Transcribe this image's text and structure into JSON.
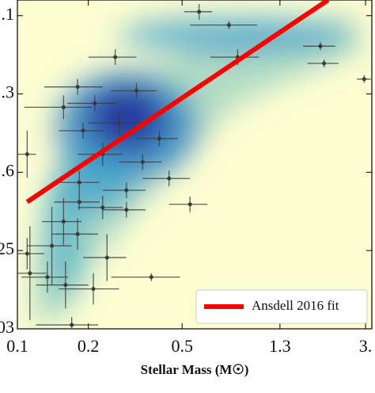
{
  "chart_data": {
    "type": "scatter",
    "xlabel": "Stellar Mass (M☉)",
    "xscale": "log",
    "xlim": [
      0.1,
      3.19
    ],
    "xticks": [
      0.1,
      0.2,
      0.5,
      1.3,
      {
        "value": 3,
        "label": "3."
      }
    ],
    "ylim": [
      0,
      4.2
    ],
    "yticks": [
      {
        "value": 4,
        "label": ".1"
      },
      {
        "value": 3,
        "label": ".3"
      },
      {
        "value": 2,
        "label": ".6"
      },
      {
        "value": 1,
        "label": "25"
      },
      {
        "value": 0,
        "label": "03"
      }
    ],
    "legend": "lower right",
    "series": [
      {
        "name": "Ansdell 2016 fit",
        "color": "#ff0000",
        "x": [
          0.11,
          2.08
        ],
        "values": [
          1.62,
          4.2
        ]
      }
    ],
    "points": {
      "color": "#3a3a3a",
      "x": [
        0.59,
        0.79,
        0.26,
        0.86,
        1.93,
        2.0,
        2.96,
        0.18,
        0.32,
        0.157,
        0.213,
        0.27,
        0.19,
        0.4,
        0.11,
        0.23,
        0.34,
        0.44,
        0.183,
        0.29,
        0.183,
        0.23,
        0.54,
        0.29,
        0.157,
        0.18,
        0.14,
        0.24,
        0.11,
        0.134,
        0.37,
        0.16,
        0.21,
        0.113,
        0.17
      ],
      "y": [
        4.05,
        3.88,
        3.47,
        3.47,
        3.61,
        3.39,
        3.19,
        3.09,
        3.04,
        2.83,
        2.88,
        2.63,
        2.53,
        2.43,
        2.23,
        2.23,
        2.13,
        1.92,
        1.87,
        1.77,
        1.62,
        1.55,
        1.59,
        1.52,
        1.37,
        1.21,
        1.06,
        0.91,
        0.96,
        0.66,
        0.66,
        0.56,
        0.51,
        0.71,
        0.05
      ],
      "xerr": [
        0.08,
        0.25,
        0.06,
        0.2,
        0.3,
        0.3,
        0.2,
        0.05,
        0.07,
        0.05,
        0.05,
        0.07,
        0.04,
        0.08,
        0.01,
        0.05,
        0.07,
        0.1,
        0.04,
        0.06,
        0.04,
        0.05,
        0.1,
        0.06,
        0.03,
        0.04,
        0.03,
        0.05,
        0.02,
        0.03,
        0.12,
        0.04,
        0.06,
        0.02,
        0.05
      ],
      "yerr": [
        0.1,
        0.05,
        0.1,
        0.1,
        0.05,
        0.05,
        0.05,
        0.1,
        0.1,
        0.15,
        0.1,
        0.15,
        0.1,
        0.1,
        0.3,
        0.15,
        0.1,
        0.1,
        0.15,
        0.1,
        0.1,
        0.15,
        0.1,
        0.1,
        0.3,
        0.2,
        0.5,
        0.3,
        0.2,
        0.2,
        0.05,
        0.3,
        0.2,
        0.6,
        0.1
      ]
    }
  }
}
